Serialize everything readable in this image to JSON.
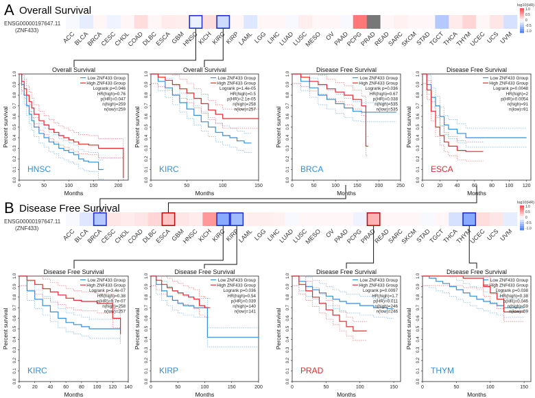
{
  "panels": [
    {
      "letter": "A",
      "title": "Overall Survival"
    },
    {
      "letter": "B",
      "title": "Disease Free Survival"
    }
  ],
  "gene_id": "ENSG00000197647.11",
  "gene_symbol": "(ZNF433)",
  "cancers": [
    "ACC",
    "BLCA",
    "BRCA",
    "CESC",
    "CHOL",
    "COAD",
    "DLBC",
    "ESCA",
    "GBM",
    "HNSC",
    "KICH",
    "KIRC",
    "KIRP",
    "LAML",
    "LGG",
    "LIHC",
    "LUAD",
    "LUSC",
    "MESO",
    "OV",
    "PAAD",
    "PCPG",
    "PRAD",
    "READ",
    "SARC",
    "SKCM",
    "STAD",
    "TGCT",
    "THCA",
    "THYM",
    "UCEC",
    "UCS",
    "UVM"
  ],
  "legend": {
    "title": "log10(HR)",
    "ticks": [
      "1.0",
      "0.5",
      "0",
      "-0.5",
      "-1.0"
    ]
  },
  "colors": {
    "low": "#2f8fdd",
    "high": "#e8252a",
    "box": "#2233cc"
  },
  "chart_data": [
    {
      "type": "heatmap",
      "title": "Overall Survival",
      "categories": [
        "ACC",
        "BLCA",
        "BRCA",
        "CESC",
        "CHOL",
        "COAD",
        "DLBC",
        "ESCA",
        "GBM",
        "HNSC",
        "KICH",
        "KIRC",
        "KIRP",
        "LAML",
        "LGG",
        "LIHC",
        "LUAD",
        "LUSC",
        "MESO",
        "OV",
        "PAAD",
        "PCPG",
        "PRAD",
        "READ",
        "SARC",
        "SKCM",
        "STAD",
        "TGCT",
        "THCA",
        "THYM",
        "UCEC",
        "UCS",
        "UVM"
      ],
      "values": [
        -0.05,
        -0.15,
        0.05,
        -0.1,
        0.05,
        0.2,
        0.05,
        0.12,
        0.1,
        -0.12,
        0.2,
        -0.3,
        0.05,
        -0.2,
        0.05,
        0.05,
        -0.05,
        0.1,
        0.05,
        0.05,
        -0.05,
        0.8,
        null,
        0.05,
        0.08,
        0.05,
        0.05,
        -0.45,
        0.12,
        0.25,
        0.05,
        0.15,
        -0.25
      ],
      "boxed": [
        "HNSC",
        "KIRC"
      ]
    },
    {
      "type": "heatmap",
      "title": "Disease Free Survival",
      "categories": [
        "ACC",
        "BLCA",
        "BRCA",
        "CESC",
        "CHOL",
        "COAD",
        "DLBC",
        "ESCA",
        "GBM",
        "HNSC",
        "KICH",
        "KIRC",
        "KIRP",
        "LAML",
        "LGG",
        "LIHC",
        "LUAD",
        "LUSC",
        "MESO",
        "OV",
        "PAAD",
        "PCPG",
        "PRAD",
        "READ",
        "SARC",
        "SKCM",
        "STAD",
        "TGCT",
        "THCA",
        "THYM",
        "UCEC",
        "UCS",
        "UVM"
      ],
      "values": [
        -0.05,
        -0.2,
        -0.45,
        0.15,
        0.12,
        0.15,
        0.25,
        0.35,
        0.15,
        0.12,
        0.6,
        -0.7,
        -0.55,
        0.1,
        0.1,
        0.08,
        -0.05,
        0.05,
        0.05,
        0.05,
        0.05,
        -0.1,
        0.45,
        0.05,
        0.05,
        0.05,
        -0.05,
        0.05,
        -0.25,
        -0.7,
        0.2,
        0.15,
        -0.15
      ],
      "boxed": [
        "BRCA",
        "ESCA",
        "KIRC",
        "KIRP",
        "PRAD",
        "THYM"
      ]
    },
    {
      "type": "line",
      "title": "Overall Survival",
      "label": "HNSC",
      "label_color": "low",
      "xlabel": "Months",
      "ylabel": "Percent survival",
      "xlim": [
        0,
        220
      ],
      "ylim": [
        0,
        1
      ],
      "xticks": [
        0,
        50,
        100,
        150,
        200
      ],
      "yticks": [
        0,
        0.1,
        0.2,
        0.3,
        0.4,
        0.5,
        0.6,
        0.7,
        0.8,
        0.9,
        1.0
      ],
      "stats": [
        "Low ZNF433 Group",
        "High ZNF433 Group",
        "Logrank p=0.046",
        "HR(high)=0.76",
        "p(HR)=0.047",
        "n(high)=259",
        "n(low)=259"
      ],
      "series": [
        {
          "name": "Low ZNF433 Group",
          "x": [
            0,
            5,
            10,
            15,
            20,
            25,
            30,
            40,
            50,
            60,
            70,
            80,
            90,
            100,
            110,
            120,
            130,
            140,
            150,
            160,
            170
          ],
          "y": [
            1,
            0.9,
            0.8,
            0.7,
            0.62,
            0.56,
            0.5,
            0.44,
            0.4,
            0.36,
            0.34,
            0.3,
            0.28,
            0.26,
            0.24,
            0.2,
            0.18,
            0.17,
            0.17,
            0.1,
            0.1
          ]
        },
        {
          "name": "High ZNF433 Group",
          "x": [
            0,
            5,
            10,
            15,
            20,
            25,
            30,
            40,
            50,
            60,
            70,
            80,
            90,
            100,
            110,
            120,
            140,
            160,
            180,
            200,
            210
          ],
          "y": [
            1,
            0.93,
            0.86,
            0.8,
            0.74,
            0.68,
            0.62,
            0.56,
            0.52,
            0.48,
            0.45,
            0.42,
            0.4,
            0.38,
            0.36,
            0.34,
            0.33,
            0.3,
            0.3,
            0.3,
            0.02
          ]
        }
      ]
    },
    {
      "type": "line",
      "title": "Overall Survival",
      "label": "KIRC",
      "label_color": "low",
      "xlabel": "Months",
      "ylabel": "Percent survival",
      "xlim": [
        0,
        150
      ],
      "ylim": [
        0,
        1
      ],
      "xticks": [
        0,
        50,
        100,
        150
      ],
      "yticks": [
        0,
        0.1,
        0.2,
        0.3,
        0.4,
        0.5,
        0.6,
        0.7,
        0.8,
        0.9,
        1.0
      ],
      "stats": [
        "Low ZNF433 Group",
        "High ZNF433 Group",
        "Logrank p=1.4e-05",
        "HR(high)=0.5",
        "p(HR)=2.1e-05",
        "n(high)=258",
        "n(low)=257"
      ],
      "series": [
        {
          "name": "Low ZNF433 Group",
          "x": [
            0,
            10,
            20,
            30,
            40,
            50,
            60,
            70,
            80,
            90,
            100,
            110,
            120,
            130,
            140
          ],
          "y": [
            1,
            0.93,
            0.87,
            0.8,
            0.73,
            0.67,
            0.61,
            0.55,
            0.5,
            0.45,
            0.42,
            0.4,
            0.37,
            0.35,
            0.35
          ]
        },
        {
          "name": "High ZNF433 Group",
          "x": [
            0,
            10,
            20,
            30,
            40,
            50,
            60,
            70,
            80,
            90,
            100,
            120,
            140,
            150
          ],
          "y": [
            1,
            0.97,
            0.94,
            0.9,
            0.86,
            0.82,
            0.77,
            0.72,
            0.66,
            0.62,
            0.58,
            0.58,
            0.58,
            0.58
          ]
        }
      ]
    },
    {
      "type": "line",
      "title": "Disease Free Survival",
      "label": "BRCA",
      "label_color": "low",
      "xlabel": "Months",
      "ylabel": "Percent survival",
      "xlim": [
        0,
        250
      ],
      "ylim": [
        0,
        1
      ],
      "xticks": [
        0,
        50,
        100,
        150,
        200,
        250
      ],
      "yticks": [
        0,
        0.1,
        0.2,
        0.3,
        0.4,
        0.5,
        0.6,
        0.7,
        0.8,
        0.9,
        1.0
      ],
      "stats": [
        "Low ZNF433 Group",
        "High ZNF433 Group",
        "Logrank p=0.036",
        "HR(high)=0.67",
        "p(HR)=0.038",
        "n(high)=535",
        "n(low)=535"
      ],
      "series": [
        {
          "name": "Low ZNF433 Group",
          "x": [
            0,
            20,
            40,
            60,
            80,
            100,
            120,
            140,
            160,
            180,
            200,
            240
          ],
          "y": [
            1,
            0.93,
            0.87,
            0.8,
            0.76,
            0.72,
            0.68,
            0.65,
            0.64,
            0.64,
            0.64,
            0.64
          ]
        },
        {
          "name": "High ZNF433 Group",
          "x": [
            0,
            20,
            40,
            60,
            80,
            100,
            120,
            140,
            160,
            170,
            175
          ],
          "y": [
            1,
            0.97,
            0.93,
            0.9,
            0.86,
            0.83,
            0.8,
            0.76,
            0.7,
            0.32,
            0.32
          ]
        }
      ]
    },
    {
      "type": "line",
      "title": "Disease Free Survival",
      "label": "ESCA",
      "label_color": "high",
      "xlabel": "Months",
      "ylabel": "Percent survival",
      "xlim": [
        0,
        125
      ],
      "ylim": [
        0,
        1
      ],
      "xticks": [
        0,
        20,
        40,
        60,
        80,
        100,
        120
      ],
      "yticks": [
        0,
        0.1,
        0.2,
        0.3,
        0.4,
        0.5,
        0.6,
        0.7,
        0.8,
        0.9,
        1.0
      ],
      "stats": [
        "Low ZNF433 Group",
        "High ZNF433 Group",
        "Logrank p=0.0048",
        "HR(high)=2",
        "p(HR)=0.0054",
        "n(high)=91",
        "n(low)=91"
      ],
      "series": [
        {
          "name": "Low ZNF433 Group",
          "x": [
            0,
            5,
            10,
            15,
            20,
            25,
            30,
            40,
            50,
            60,
            80,
            100,
            120
          ],
          "y": [
            1,
            0.9,
            0.78,
            0.7,
            0.6,
            0.52,
            0.48,
            0.44,
            0.4,
            0.4,
            0.4,
            0.4,
            0.4
          ]
        },
        {
          "name": "High ZNF433 Group",
          "x": [
            0,
            5,
            10,
            15,
            20,
            25,
            30,
            40,
            50,
            60,
            70
          ],
          "y": [
            1,
            0.85,
            0.65,
            0.5,
            0.42,
            0.36,
            0.32,
            0.28,
            0.27,
            0.27,
            0.27
          ]
        }
      ]
    },
    {
      "type": "line",
      "title": "Disease Free Survival",
      "label": "KIRC",
      "label_color": "low",
      "xlabel": "Months",
      "ylabel": "Percent survival",
      "xlim": [
        0,
        140
      ],
      "ylim": [
        0,
        1
      ],
      "xticks": [
        0,
        20,
        40,
        60,
        80,
        100,
        120,
        140
      ],
      "yticks": [
        0,
        0.1,
        0.2,
        0.3,
        0.4,
        0.5,
        0.6,
        0.7,
        0.8,
        0.9,
        1.0
      ],
      "stats": [
        "Low ZNF433 Group",
        "High ZNF433 Group",
        "Logrank p=3.4e-07",
        "HR(high)=0.38",
        "p(HR)=9.7e-07",
        "n(high)=258",
        "n(low)=257"
      ],
      "series": [
        {
          "name": "Low ZNF433 Group",
          "x": [
            0,
            10,
            20,
            30,
            40,
            50,
            60,
            70,
            80,
            90,
            100,
            110,
            120,
            130
          ],
          "y": [
            1,
            0.86,
            0.78,
            0.72,
            0.66,
            0.6,
            0.56,
            0.54,
            0.52,
            0.5,
            0.5,
            0.5,
            0.5,
            0.5
          ]
        },
        {
          "name": "High ZNF433 Group",
          "x": [
            0,
            10,
            20,
            30,
            40,
            50,
            60,
            70,
            80,
            90,
            100,
            110,
            120,
            130
          ],
          "y": [
            1,
            0.96,
            0.92,
            0.88,
            0.85,
            0.82,
            0.79,
            0.77,
            0.76,
            0.76,
            0.74,
            0.74,
            0.6,
            0.45
          ]
        }
      ]
    },
    {
      "type": "line",
      "title": "Disease Free Survival",
      "label": "KIRP",
      "label_color": "low",
      "xlabel": "Months",
      "ylabel": "Percent survival",
      "xlim": [
        0,
        200
      ],
      "ylim": [
        0,
        1
      ],
      "xticks": [
        0,
        50,
        100,
        150,
        200
      ],
      "yticks": [
        0,
        0.1,
        0.2,
        0.3,
        0.4,
        0.5,
        0.6,
        0.7,
        0.8,
        0.9,
        1.0
      ],
      "stats": [
        "Low ZNF433 Group",
        "High ZNF433 Group",
        "Logrank p=0.036",
        "HR(high)=0.54",
        "p(HR)=0.039",
        "n(high)=140",
        "n(low)=141"
      ],
      "series": [
        {
          "name": "Low ZNF433 Group",
          "x": [
            0,
            10,
            20,
            30,
            40,
            50,
            60,
            70,
            80,
            90,
            100,
            105,
            150,
            200
          ],
          "y": [
            1,
            0.92,
            0.86,
            0.81,
            0.77,
            0.74,
            0.72,
            0.72,
            0.7,
            0.7,
            0.7,
            0.42,
            0.42,
            0.42
          ]
        },
        {
          "name": "High ZNF433 Group",
          "x": [
            0,
            10,
            20,
            30,
            40,
            50,
            60,
            70,
            80,
            90,
            100,
            110
          ],
          "y": [
            1,
            0.96,
            0.92,
            0.89,
            0.86,
            0.84,
            0.82,
            0.8,
            0.78,
            0.72,
            0.7,
            0.7
          ]
        }
      ]
    },
    {
      "type": "line",
      "title": "Disease Free Survival",
      "label": "PRAD",
      "label_color": "high",
      "xlabel": "Months",
      "ylabel": "Percent survival",
      "xlim": [
        0,
        160
      ],
      "ylim": [
        0,
        1
      ],
      "xticks": [
        0,
        50,
        100,
        150
      ],
      "yticks": [
        0,
        0.1,
        0.2,
        0.3,
        0.4,
        0.5,
        0.6,
        0.7,
        0.8,
        0.9,
        1.0
      ],
      "stats": [
        "Low ZNF433 Group",
        "High ZNF433 Group",
        "Logrank p=0.0097",
        "HR(high)=1.7",
        "p(HR)=0.011",
        "n(high)=246",
        "n(low)=246"
      ],
      "series": [
        {
          "name": "Low ZNF433 Group",
          "x": [
            0,
            10,
            20,
            30,
            40,
            50,
            60,
            70,
            80,
            100,
            120,
            140,
            150
          ],
          "y": [
            1,
            0.95,
            0.9,
            0.87,
            0.84,
            0.81,
            0.78,
            0.76,
            0.74,
            0.72,
            0.7,
            0.69,
            0.69
          ]
        },
        {
          "name": "High ZNF433 Group",
          "x": [
            0,
            10,
            20,
            30,
            40,
            50,
            60,
            70,
            80,
            90,
            100,
            110
          ],
          "y": [
            1,
            0.92,
            0.86,
            0.8,
            0.74,
            0.68,
            0.63,
            0.57,
            0.52,
            0.48,
            0.48,
            0.48
          ]
        }
      ]
    },
    {
      "type": "line",
      "title": "Disease Free Survival",
      "label": "THYM",
      "label_color": "low",
      "xlabel": "Months",
      "ylabel": "Percent survival",
      "xlim": [
        0,
        160
      ],
      "ylim": [
        0,
        1
      ],
      "xticks": [
        0,
        50,
        100,
        150
      ],
      "yticks": [
        0,
        0.1,
        0.2,
        0.3,
        0.4,
        0.5,
        0.6,
        0.7,
        0.8,
        0.9,
        1.0
      ],
      "stats": [
        "Low ZNF433 Group",
        "High ZNF433 Group",
        "Logrank p=0.038",
        "HR(high)=0.38",
        "p(HR)=0.046",
        "n(high)=59",
        "n(low)=59"
      ],
      "series": [
        {
          "name": "Low ZNF433 Group",
          "x": [
            0,
            10,
            20,
            30,
            40,
            50,
            60,
            70,
            80,
            90,
            100,
            110,
            120,
            130,
            150
          ],
          "y": [
            1,
            0.98,
            0.95,
            0.93,
            0.9,
            0.87,
            0.84,
            0.81,
            0.78,
            0.76,
            0.74,
            0.72,
            0.7,
            0.7,
            0.7
          ]
        },
        {
          "name": "High ZNF433 Group",
          "x": [
            0,
            20,
            40,
            60,
            80,
            90,
            100,
            110,
            120,
            150
          ],
          "y": [
            1,
            1,
            1,
            0.98,
            0.98,
            0.9,
            0.84,
            0.78,
            0.66,
            0.66
          ]
        }
      ]
    }
  ]
}
